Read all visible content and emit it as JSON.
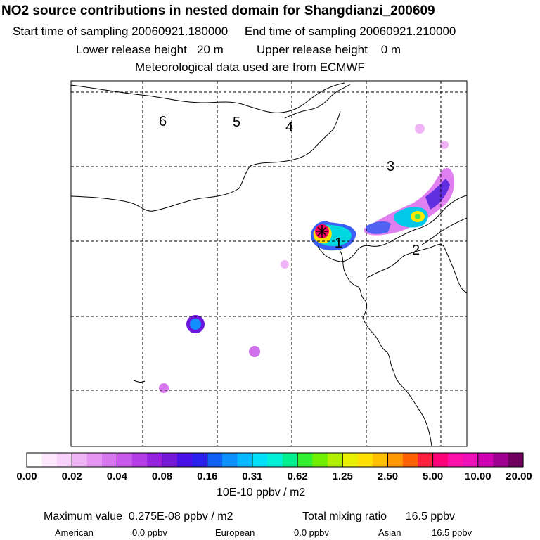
{
  "header": {
    "title": "NO2 source contributions in nested domain for Shangdianzi_200609",
    "line1": "Start time of sampling 20060921.180000     End time of sampling 20060921.210000",
    "line2": "Lower release height   20 m          Upper release height    0 m",
    "line3": "Meteorological data used are from ECMWF"
  },
  "map": {
    "sector_labels": [
      "6",
      "5",
      "4",
      "3",
      "2",
      "1"
    ],
    "station_marker": "station-icon",
    "colors": {
      "low_plume": "#e080f0",
      "mid_plume": "#00d0e0",
      "high_plume": "#ffff00",
      "peak": "#ff0060",
      "bluedot": "#2040ff"
    }
  },
  "colorbar": {
    "colors": [
      "#ffffff",
      "#fde8fe",
      "#f8d2fb",
      "#f0b4f6",
      "#e596f2",
      "#d777ee",
      "#c85aea",
      "#b43ce6",
      "#9420e0",
      "#7618d8",
      "#4a10e8",
      "#2a20f0",
      "#1060f8",
      "#0a90ff",
      "#06b8ff",
      "#00e0f8",
      "#00f0d8",
      "#00f090",
      "#30f030",
      "#70f000",
      "#b0f000",
      "#e8f000",
      "#ffe000",
      "#ffc000",
      "#ff9800",
      "#ff6000",
      "#ff2040",
      "#ff0078",
      "#ff10a8",
      "#f010b8",
      "#d000b0",
      "#a00090",
      "#700060"
    ],
    "ticks": [
      "0.00",
      "0.02",
      "0.04",
      "0.08",
      "0.16",
      "0.31",
      "0.62",
      "1.25",
      "2.50",
      "5.00",
      "10.00",
      "20.00"
    ],
    "unit": "10E-10 ppbv / m2"
  },
  "footer": {
    "max_value": "Maximum value  0.275E-08 ppbv / m2",
    "total": "Total mixing ratio      16.5 ppbv",
    "american_label": "American",
    "american_value": "0.0 ppbv",
    "european_label": "European",
    "european_value": "0.0 ppbv",
    "asian_label": "Asian",
    "asian_value": "16.5 ppbv"
  }
}
